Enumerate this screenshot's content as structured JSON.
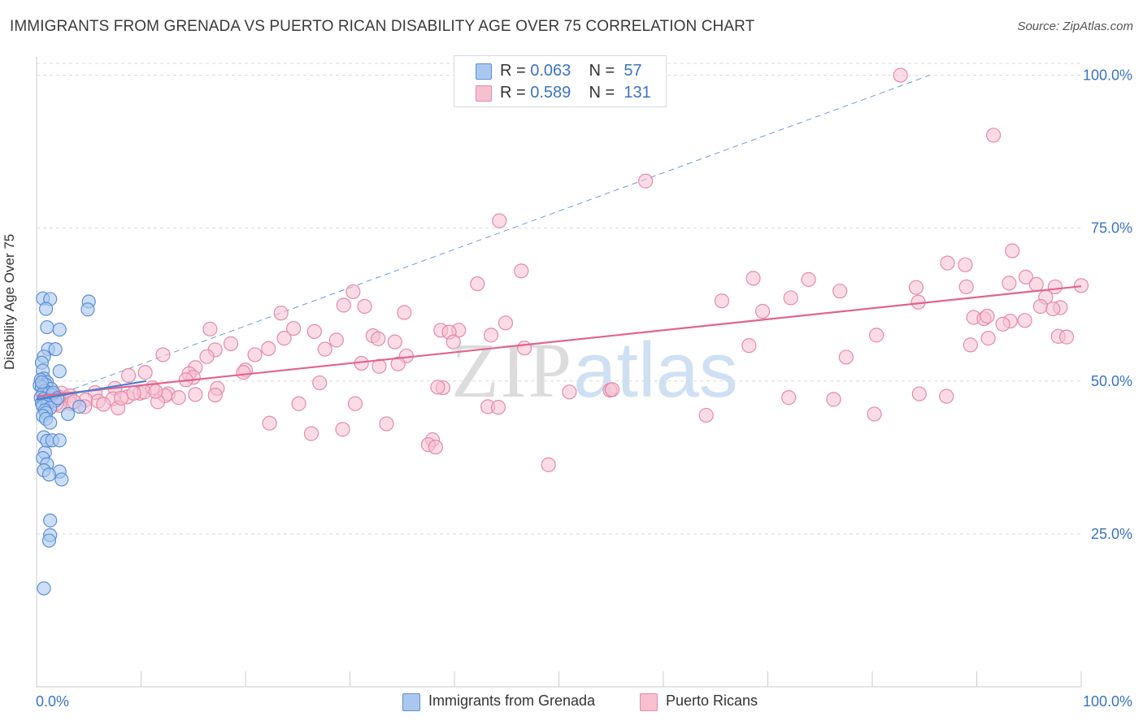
{
  "title": "IMMIGRANTS FROM GRENADA VS PUERTO RICAN DISABILITY AGE OVER 75 CORRELATION CHART",
  "source": "Source: ZipAtlas.com",
  "watermark": {
    "zip": "ZIP",
    "atlas": "atlas"
  },
  "legend_top": [
    {
      "r_label": "R = ",
      "r_value": "0.063",
      "n_label": "N = ",
      "n_value": "57"
    },
    {
      "r_label": "R = ",
      "r_value": "0.589",
      "n_label": "N = ",
      "n_value": "131"
    }
  ],
  "legend_bottom": [
    "Immigrants from Grenada",
    "Puerto Ricans"
  ],
  "colors": {
    "blue_fill": "#aac8ef",
    "blue_stroke": "#5b8fd6",
    "blue_line": "#4a7fcf",
    "pink_fill": "#f7c0d1",
    "pink_stroke": "#e58aa7",
    "pink_line": "#e0648e",
    "tick_label": "#3b73c4",
    "grid": "#d9d9d9",
    "axis": "#cccccc"
  },
  "chart_data": {
    "type": "scatter",
    "title": "IMMIGRANTS FROM GRENADA VS PUERTO RICAN DISABILITY AGE OVER 75 CORRELATION CHART",
    "xlabel": "",
    "ylabel": "Disability Age Over 75",
    "xlim": [
      0,
      100
    ],
    "ylim": [
      0,
      103
    ],
    "x_tick_labels": [
      "0.0%",
      "100.0%"
    ],
    "y_ticks": [
      25,
      50,
      75,
      100
    ],
    "y_tick_labels": [
      "25.0%",
      "50.0%",
      "75.0%",
      "100.0%"
    ],
    "grid": true,
    "legend_placement": "top-center",
    "series": [
      {
        "name": "Immigrants from Grenada",
        "color": "#aac8ef",
        "points": [
          [
            0.6,
            63.5
          ],
          [
            1.3,
            63.4
          ],
          [
            5.0,
            63.0
          ],
          [
            0.9,
            61.8
          ],
          [
            4.9,
            61.7
          ],
          [
            1.0,
            58.8
          ],
          [
            2.2,
            58.4
          ],
          [
            1.1,
            55.2
          ],
          [
            1.8,
            55.2
          ],
          [
            0.7,
            54.0
          ],
          [
            0.5,
            53.0
          ],
          [
            0.6,
            51.7
          ],
          [
            2.2,
            51.6
          ],
          [
            0.7,
            50.4
          ],
          [
            0.4,
            50.2
          ],
          [
            1.0,
            49.8
          ],
          [
            0.9,
            49.4
          ],
          [
            0.3,
            49.3
          ],
          [
            0.5,
            49.0
          ],
          [
            1.4,
            48.7
          ],
          [
            0.8,
            48.4
          ],
          [
            1.2,
            48.0
          ],
          [
            0.6,
            47.9
          ],
          [
            1.5,
            47.7
          ],
          [
            0.4,
            47.3
          ],
          [
            0.7,
            47.1
          ],
          [
            1.1,
            46.9
          ],
          [
            1.8,
            46.8
          ],
          [
            0.5,
            46.4
          ],
          [
            1.0,
            46.1
          ],
          [
            0.6,
            45.9
          ],
          [
            1.3,
            45.6
          ],
          [
            0.8,
            45.2
          ],
          [
            4.1,
            45.8
          ],
          [
            0.9,
            44.8
          ],
          [
            3.0,
            44.6
          ],
          [
            0.6,
            44.3
          ],
          [
            0.9,
            43.8
          ],
          [
            1.3,
            43.2
          ],
          [
            0.7,
            40.8
          ],
          [
            1.0,
            40.2
          ],
          [
            1.5,
            40.3
          ],
          [
            2.2,
            40.3
          ],
          [
            0.8,
            38.3
          ],
          [
            0.6,
            37.4
          ],
          [
            1.0,
            36.4
          ],
          [
            0.7,
            35.4
          ],
          [
            2.2,
            35.2
          ],
          [
            1.2,
            34.7
          ],
          [
            2.4,
            33.9
          ],
          [
            1.3,
            27.2
          ],
          [
            1.3,
            24.8
          ],
          [
            1.2,
            23.9
          ],
          [
            0.7,
            16.1
          ],
          [
            0.5,
            49.8
          ],
          [
            1.6,
            48.1
          ],
          [
            2.0,
            47.2
          ]
        ],
        "trend": {
          "x": [
            0,
            10.5
          ],
          "y": [
            47.0,
            50.0
          ]
        }
      },
      {
        "name": "Puerto Ricans",
        "color": "#f7c0d1",
        "points": [
          [
            82.7,
            100.0
          ],
          [
            91.6,
            90.2
          ],
          [
            58.3,
            82.7
          ],
          [
            44.3,
            76.2
          ],
          [
            93.4,
            71.3
          ],
          [
            88.9,
            69.0
          ],
          [
            87.2,
            69.3
          ],
          [
            46.4,
            68.0
          ],
          [
            68.6,
            66.8
          ],
          [
            73.9,
            66.6
          ],
          [
            94.7,
            67.0
          ],
          [
            42.2,
            65.9
          ],
          [
            93.1,
            66.0
          ],
          [
            95.7,
            65.8
          ],
          [
            89.0,
            65.4
          ],
          [
            84.2,
            65.3
          ],
          [
            76.9,
            64.7
          ],
          [
            30.3,
            64.6
          ],
          [
            97.5,
            65.4
          ],
          [
            100.0,
            65.6
          ],
          [
            96.6,
            63.7
          ],
          [
            72.2,
            63.6
          ],
          [
            65.6,
            63.1
          ],
          [
            84.4,
            62.9
          ],
          [
            29.4,
            62.4
          ],
          [
            31.4,
            62.2
          ],
          [
            96.1,
            62.2
          ],
          [
            98.0,
            62.0
          ],
          [
            97.3,
            61.8
          ],
          [
            69.5,
            61.4
          ],
          [
            35.2,
            61.2
          ],
          [
            23.4,
            61.1
          ],
          [
            44.9,
            59.5
          ],
          [
            89.7,
            60.4
          ],
          [
            90.7,
            60.2
          ],
          [
            91.0,
            60.6
          ],
          [
            94.6,
            59.9
          ],
          [
            93.2,
            59.8
          ],
          [
            92.5,
            59.3
          ],
          [
            24.6,
            58.6
          ],
          [
            16.6,
            58.5
          ],
          [
            38.7,
            58.3
          ],
          [
            40.4,
            58.3
          ],
          [
            39.5,
            58.0
          ],
          [
            32.2,
            57.4
          ],
          [
            26.6,
            58.1
          ],
          [
            43.5,
            57.5
          ],
          [
            80.4,
            57.5
          ],
          [
            89.4,
            55.9
          ],
          [
            97.8,
            57.3
          ],
          [
            98.6,
            57.2
          ],
          [
            91.1,
            57.0
          ],
          [
            28.7,
            56.7
          ],
          [
            23.7,
            57.0
          ],
          [
            32.7,
            56.9
          ],
          [
            34.3,
            56.4
          ],
          [
            39.9,
            56.4
          ],
          [
            18.6,
            56.1
          ],
          [
            27.6,
            55.2
          ],
          [
            22.2,
            55.3
          ],
          [
            17.1,
            55.1
          ],
          [
            68.2,
            55.8
          ],
          [
            46.7,
            55.4
          ],
          [
            16.3,
            54.0
          ],
          [
            12.1,
            54.3
          ],
          [
            35.4,
            54.1
          ],
          [
            20.9,
            54.3
          ],
          [
            77.5,
            53.9
          ],
          [
            32.8,
            52.4
          ],
          [
            31.1,
            52.9
          ],
          [
            15.2,
            52.2
          ],
          [
            20.0,
            51.8
          ],
          [
            34.6,
            52.8
          ],
          [
            10.4,
            51.4
          ],
          [
            8.8,
            50.9
          ],
          [
            19.8,
            51.4
          ],
          [
            14.6,
            51.2
          ],
          [
            15.0,
            50.6
          ],
          [
            14.3,
            50.2
          ],
          [
            27.1,
            49.7
          ],
          [
            38.9,
            48.9
          ],
          [
            38.4,
            49.0
          ],
          [
            17.3,
            48.8
          ],
          [
            11.1,
            48.9
          ],
          [
            7.5,
            48.8
          ],
          [
            5.6,
            48.1
          ],
          [
            9.9,
            48.0
          ],
          [
            12.6,
            47.9
          ],
          [
            15.2,
            47.8
          ],
          [
            12.3,
            47.6
          ],
          [
            17.1,
            47.7
          ],
          [
            13.6,
            47.3
          ],
          [
            8.7,
            47.4
          ],
          [
            7.3,
            47.1
          ],
          [
            4.7,
            46.9
          ],
          [
            2.4,
            48.0
          ],
          [
            3.2,
            47.6
          ],
          [
            5.9,
            46.7
          ],
          [
            11.6,
            46.6
          ],
          [
            6.4,
            46.2
          ],
          [
            3.3,
            46.3
          ],
          [
            7.8,
            45.6
          ],
          [
            2.2,
            46.0
          ],
          [
            1.9,
            46.3
          ],
          [
            4.6,
            45.8
          ],
          [
            3.6,
            46.6
          ],
          [
            2.1,
            47.4
          ],
          [
            1.5,
            47.9
          ],
          [
            10.3,
            48.2
          ],
          [
            11.4,
            48.3
          ],
          [
            9.3,
            48.0
          ],
          [
            8.1,
            47.2
          ],
          [
            80.2,
            44.6
          ],
          [
            22.3,
            43.1
          ],
          [
            33.5,
            43.0
          ],
          [
            25.1,
            46.3
          ],
          [
            30.5,
            46.3
          ],
          [
            43.2,
            45.8
          ],
          [
            44.2,
            45.7
          ],
          [
            29.3,
            42.1
          ],
          [
            26.3,
            41.4
          ],
          [
            37.9,
            40.4
          ],
          [
            37.5,
            39.6
          ],
          [
            38.2,
            39.2
          ],
          [
            49.0,
            36.3
          ],
          [
            64.1,
            44.4
          ],
          [
            54.9,
            48.5
          ],
          [
            55.1,
            48.6
          ],
          [
            76.3,
            47.0
          ],
          [
            87.1,
            47.5
          ],
          [
            72.0,
            47.3
          ],
          [
            84.5,
            47.9
          ],
          [
            51.0,
            48.2
          ]
        ],
        "trend": {
          "x": [
            0,
            100
          ],
          "y": [
            47.5,
            65.5
          ]
        }
      }
    ],
    "reference_line": {
      "x": [
        0,
        85.5
      ],
      "y": [
        46.5,
        100.0
      ],
      "style": "dashed"
    }
  }
}
